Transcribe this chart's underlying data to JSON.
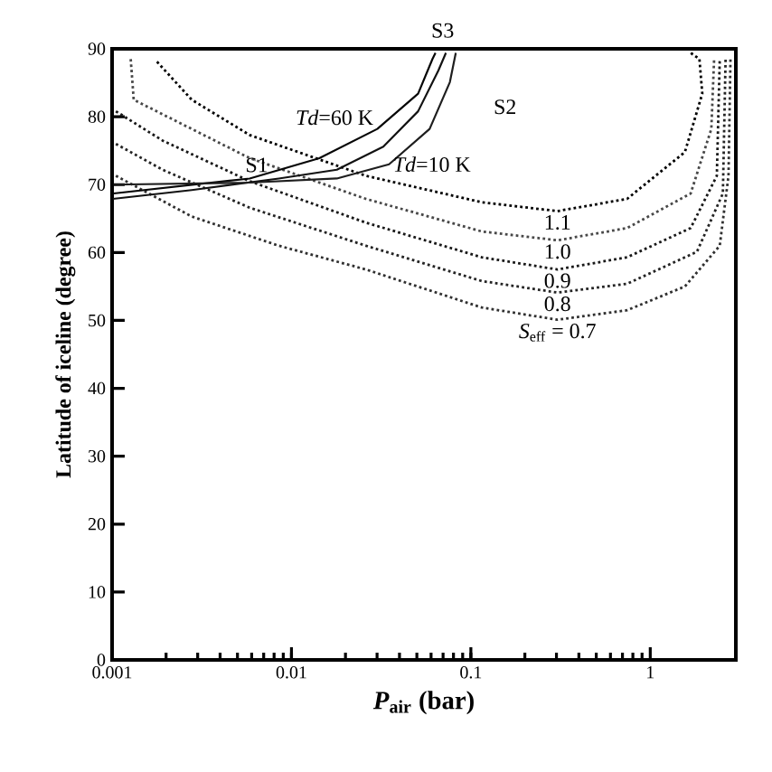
{
  "chart_data": {
    "type": "line",
    "xlabel": "*P*$_{air}$ (bar)",
    "ylabel": "Latitude of iceline (degree)",
    "log": "x",
    "xlim": [
      0.001,
      3
    ],
    "ylim": [
      0,
      90
    ],
    "xticks": [
      0.001,
      0.01,
      0.1,
      1
    ],
    "yticks": [
      0,
      10,
      20,
      30,
      40,
      50,
      60,
      70,
      80,
      90
    ],
    "grid": false,
    "legend": false,
    "marker": "none",
    "series": [
      {
        "name": "1.1",
        "color": "#000000",
        "line_style": "dotted",
        "x": [
          0.00178,
          0.00278,
          0.00585,
          0.026,
          0.115,
          0.304,
          0.743,
          1.56,
          1.95,
          1.88,
          1.68
        ],
        "values": [
          88.1,
          82.5,
          77.3,
          71.3,
          67.4,
          66.1,
          67.9,
          74.8,
          83.4,
          88.5,
          89.4
        ]
      },
      {
        "name": "1.0",
        "color": "#484848",
        "line_style": "dotted",
        "x": [
          0.00127,
          0.00132,
          0.00278,
          0.00585,
          0.026,
          0.115,
          0.304,
          0.743,
          1.68,
          2.19,
          2.27
        ],
        "values": [
          88.5,
          82.5,
          78.2,
          73.9,
          67.9,
          63.1,
          61.8,
          63.6,
          68.7,
          78.2,
          88.5
        ]
      },
      {
        "name": "0.9",
        "color": "#181818",
        "line_style": "dotted",
        "x": [
          0.00105,
          0.00191,
          0.00585,
          0.026,
          0.115,
          0.304,
          0.743,
          1.68,
          2.35,
          2.44
        ],
        "values": [
          80.8,
          76.5,
          70.5,
          64.4,
          59.3,
          57.5,
          59.3,
          63.6,
          71.3,
          88.5
        ]
      },
      {
        "name": "0.8",
        "color": "#242424",
        "line_style": "dotted",
        "x": [
          0.00105,
          0.00191,
          0.00585,
          0.026,
          0.115,
          0.304,
          0.743,
          1.82,
          2.54,
          2.63
        ],
        "values": [
          76.0,
          72.2,
          66.6,
          61.0,
          55.8,
          54.1,
          55.4,
          60.1,
          68.7,
          88.5
        ]
      },
      {
        "name": "*S*$_{eff}$ = 0.7",
        "color": "#303030",
        "line_style": "dotted",
        "x": [
          0.00105,
          0.00278,
          0.0085,
          0.026,
          0.115,
          0.304,
          0.743,
          1.56,
          2.44,
          2.73,
          2.8
        ],
        "values": [
          71.3,
          65.3,
          61.0,
          57.5,
          51.9,
          50.1,
          51.5,
          55.0,
          61.0,
          71.3,
          88.5
        ]
      },
      {
        "name": "*Td*=60 K",
        "color": "#060606",
        "line_style": "solid",
        "x": [
          0.00102,
          0.00585,
          0.0143,
          0.0301,
          0.0508,
          0.0611,
          0.0635
        ],
        "values": [
          68.7,
          70.9,
          73.9,
          78.2,
          83.4,
          88.5,
          89.4
        ]
      },
      {
        "color": "#121212",
        "line_style": "solid",
        "x": [
          0.00101,
          0.00278,
          0.0085,
          0.0179,
          0.0325,
          0.0508,
          0.0659,
          0.0726
        ],
        "values": [
          67.9,
          69.2,
          70.9,
          72.2,
          75.6,
          80.8,
          86.8,
          89.4
        ]
      },
      {
        "name": "*Td*=10 K",
        "color": "#1e1e1e",
        "line_style": "solid",
        "x": [
          0.00102,
          0.00585,
          0.0179,
          0.035,
          0.0589,
          0.0764,
          0.0824
        ],
        "values": [
          70.0,
          70.3,
          70.9,
          73.0,
          78.2,
          85.1,
          89.4
        ]
      }
    ],
    "annotations": [
      "S1",
      "S2",
      "S3"
    ]
  }
}
